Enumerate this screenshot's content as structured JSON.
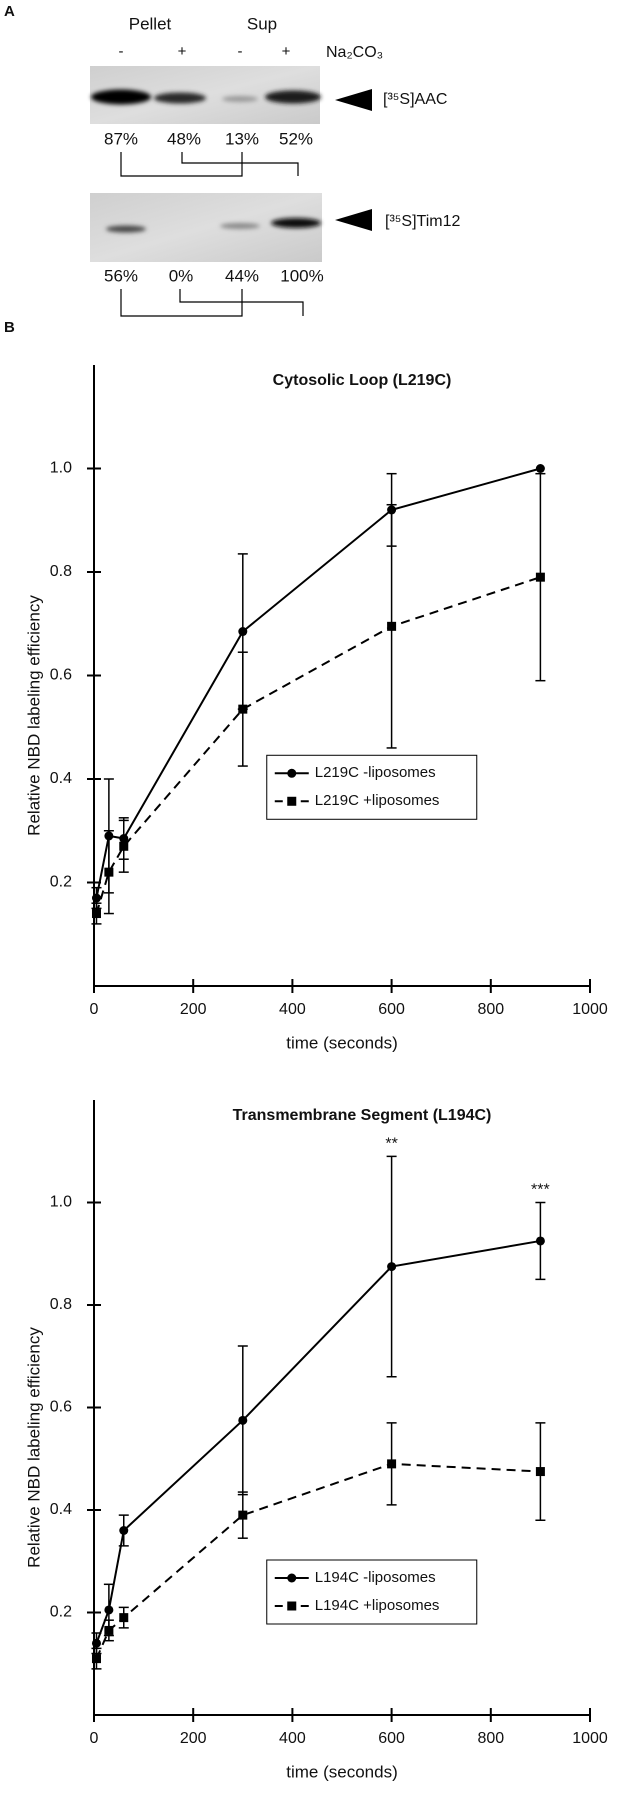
{
  "panel_labels": [
    "A",
    "B"
  ],
  "panel_a": {
    "groups": [
      "Pellet",
      "Sup"
    ],
    "treatments": [
      "-",
      "+",
      "-",
      "+"
    ],
    "reagent": "Na₂CO₃",
    "blots": [
      {
        "label": "[³⁵S]AAC",
        "percentages": [
          "87%",
          "48%",
          "13%",
          "52%"
        ]
      },
      {
        "label": "[³⁵S]Tim12",
        "percentages": [
          "56%",
          "0%",
          "44%",
          "100%"
        ]
      }
    ]
  },
  "chart_data": [
    {
      "type": "line",
      "title": "Cytosolic Loop (L219C)",
      "x_label": "time (seconds)",
      "y_label": "Relative NBD labeling efficiency",
      "x": [
        5,
        30,
        60,
        300,
        600,
        900
      ],
      "series": [
        {
          "name": "L219C -liposomes",
          "color": "#000000",
          "dash": "solid",
          "marker": "circle",
          "values": [
            0.17,
            0.29,
            0.285,
            0.685,
            0.92,
            1.0
          ],
          "errors": [
            0.02,
            0.11,
            0.04,
            0.15,
            0.07,
            null
          ]
        },
        {
          "name": "L219C +liposomes",
          "color": "#000000",
          "dash": "dashed",
          "marker": "square",
          "values": [
            0.14,
            0.22,
            0.27,
            0.535,
            0.695,
            0.79
          ],
          "errors": [
            0.02,
            0.08,
            0.05,
            0.11,
            0.235,
            0.2
          ]
        }
      ],
      "xlim": [
        0,
        1000
      ],
      "xticks": [
        0,
        200,
        400,
        600,
        800,
        1000
      ],
      "ylim": [
        0,
        1.2
      ],
      "yticks": [
        0.2,
        0.4,
        0.6,
        0.8,
        {
          "value": 1,
          "label": "1.0"
        }
      ],
      "legend": "center"
    },
    {
      "type": "line",
      "title": "Transmembrane Segment (L194C)",
      "x_label": "time (seconds)",
      "y_label": "Relative NBD labeling efficiency",
      "x": [
        5,
        30,
        60,
        300,
        600,
        900
      ],
      "series": [
        {
          "name": "L194C -liposomes",
          "color": "#000000",
          "dash": "solid",
          "marker": "circle",
          "values": [
            0.14,
            0.205,
            0.36,
            0.575,
            0.875,
            0.925
          ],
          "errors": [
            0.02,
            0.05,
            0.03,
            0.145,
            0.215,
            0.075
          ]
        },
        {
          "name": "L194C +liposomes",
          "color": "#000000",
          "dash": "dashed",
          "marker": "square",
          "values": [
            0.11,
            0.165,
            0.19,
            0.39,
            0.49,
            0.475
          ],
          "errors": [
            0.02,
            0.02,
            0.02,
            0.045,
            0.08,
            0.095
          ]
        }
      ],
      "xlim": [
        0,
        1000
      ],
      "xticks": [
        0,
        200,
        400,
        600,
        800,
        1000
      ],
      "ylim": [
        0,
        1.2
      ],
      "yticks": [
        0.2,
        0.4,
        0.6,
        0.8,
        {
          "value": 1,
          "label": "1.0"
        }
      ],
      "annotations": [
        {
          "text": "**",
          "x": 600
        },
        {
          "text": "***",
          "x": 900
        }
      ],
      "legend": "lower center"
    }
  ]
}
